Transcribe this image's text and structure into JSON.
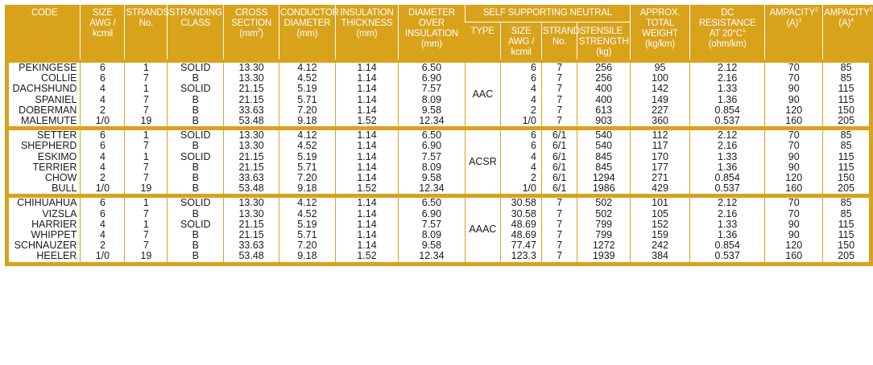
{
  "headers": {
    "code": "CODE",
    "size": [
      "SIZE",
      "AWG /",
      "kcmil"
    ],
    "strands": [
      "STRANDS",
      "No."
    ],
    "stranding": [
      "STRANDING",
      "CLASS"
    ],
    "cross": [
      "CROSS",
      "SECTION",
      "(mm",
      "2",
      ")"
    ],
    "conductor": [
      "CONDUCTOR",
      "DIAMETER",
      "(mm)"
    ],
    "insulation": [
      "INSULATION",
      "THICKNESS",
      "(mm)"
    ],
    "diameter": [
      "DIAMETER",
      "OVER",
      "INSULATION",
      "(mm)"
    ],
    "neutral_group": "SELF SUPPORTING NEUTRAL",
    "n_type": "TYPE",
    "n_size": [
      "SIZE",
      "AWG /",
      "kcmil"
    ],
    "n_strands": [
      "STRANDS",
      "No."
    ],
    "n_tensile": [
      "TENSILE",
      "STRENGTH",
      "(kg)"
    ],
    "weight": [
      "APPROX.",
      "TOTAL",
      "WEIGHT",
      "(kg/km)"
    ],
    "dc": [
      "DC",
      "RESISTANCE",
      "AT 20°C",
      "1",
      "(ohm/km)"
    ],
    "amp1": [
      "AMPACITY",
      "2",
      "(A)",
      "3"
    ],
    "amp2": [
      "AMPACITY",
      "2",
      "(A)",
      "4"
    ]
  },
  "groups": [
    {
      "type": "AAC",
      "rows": [
        {
          "code": "PEKINGESE",
          "size": "6",
          "strands": "1",
          "class": "SOLID",
          "cross": "13.30",
          "cond": "4.12",
          "ins": "1.14",
          "dia": "6.50",
          "nsize": "6",
          "nstr": "7",
          "tens": "256",
          "wt": "95",
          "dc": "2.12",
          "a1": "70",
          "a2": "85"
        },
        {
          "code": "COLLIE",
          "size": "6",
          "strands": "7",
          "class": "B",
          "cross": "13.30",
          "cond": "4.52",
          "ins": "1.14",
          "dia": "6.90",
          "nsize": "6",
          "nstr": "7",
          "tens": "256",
          "wt": "100",
          "dc": "2.16",
          "a1": "70",
          "a2": "85"
        },
        {
          "code": "DACHSHUND",
          "size": "4",
          "strands": "1",
          "class": "SOLID",
          "cross": "21.15",
          "cond": "5.19",
          "ins": "1.14",
          "dia": "7.57",
          "nsize": "4",
          "nstr": "7",
          "tens": "400",
          "wt": "142",
          "dc": "1.33",
          "a1": "90",
          "a2": "115"
        },
        {
          "code": "SPANIEL",
          "size": "4",
          "strands": "7",
          "class": "B",
          "cross": "21.15",
          "cond": "5.71",
          "ins": "1.14",
          "dia": "8.09",
          "nsize": "4",
          "nstr": "7",
          "tens": "400",
          "wt": "149",
          "dc": "1.36",
          "a1": "90",
          "a2": "115"
        },
        {
          "code": "DOBERMAN",
          "size": "2",
          "strands": "7",
          "class": "B",
          "cross": "33.63",
          "cond": "7.20",
          "ins": "1.14",
          "dia": "9.58",
          "nsize": "2",
          "nstr": "7",
          "tens": "613",
          "wt": "227",
          "dc": "0.854",
          "a1": "120",
          "a2": "150"
        },
        {
          "code": "MALEMUTE",
          "size": "1/0",
          "strands": "19",
          "class": "B",
          "cross": "53.48",
          "cond": "9.18",
          "ins": "1.52",
          "dia": "12.34",
          "nsize": "1/0",
          "nstr": "7",
          "tens": "903",
          "wt": "360",
          "dc": "0.537",
          "a1": "160",
          "a2": "205"
        }
      ]
    },
    {
      "type": "ACSR",
      "rows": [
        {
          "code": "SETTER",
          "size": "6",
          "strands": "1",
          "class": "SOLID",
          "cross": "13.30",
          "cond": "4.12",
          "ins": "1.14",
          "dia": "6.50",
          "nsize": "6",
          "nstr": "6/1",
          "tens": "540",
          "wt": "112",
          "dc": "2.12",
          "a1": "70",
          "a2": "85"
        },
        {
          "code": "SHEPHERD",
          "size": "6",
          "strands": "7",
          "class": "B",
          "cross": "13.30",
          "cond": "4.52",
          "ins": "1.14",
          "dia": "6.90",
          "nsize": "6",
          "nstr": "6/1",
          "tens": "540",
          "wt": "117",
          "dc": "2.16",
          "a1": "70",
          "a2": "85"
        },
        {
          "code": "ESKIMO",
          "size": "4",
          "strands": "1",
          "class": "SOLID",
          "cross": "21.15",
          "cond": "5.19",
          "ins": "1.14",
          "dia": "7.57",
          "nsize": "4",
          "nstr": "6/1",
          "tens": "845",
          "wt": "170",
          "dc": "1.33",
          "a1": "90",
          "a2": "115"
        },
        {
          "code": "TERRIER",
          "size": "4",
          "strands": "7",
          "class": "B",
          "cross": "21.15",
          "cond": "5.71",
          "ins": "1.14",
          "dia": "8.09",
          "nsize": "4",
          "nstr": "6/1",
          "tens": "845",
          "wt": "177",
          "dc": "1.36",
          "a1": "90",
          "a2": "115"
        },
        {
          "code": "CHOW",
          "size": "2",
          "strands": "7",
          "class": "B",
          "cross": "33.63",
          "cond": "7.20",
          "ins": "1.14",
          "dia": "9.58",
          "nsize": "2",
          "nstr": "6/1",
          "tens": "1294",
          "wt": "271",
          "dc": "0.854",
          "a1": "120",
          "a2": "150"
        },
        {
          "code": "BULL",
          "size": "1/0",
          "strands": "19",
          "class": "B",
          "cross": "53.48",
          "cond": "9.18",
          "ins": "1.52",
          "dia": "12.34",
          "nsize": "1/0",
          "nstr": "6/1",
          "tens": "1986",
          "wt": "429",
          "dc": "0.537",
          "a1": "160",
          "a2": "205"
        }
      ]
    },
    {
      "type": "AAAC",
      "rows": [
        {
          "code": "CHIHUAHUA",
          "size": "6",
          "strands": "1",
          "class": "SOLID",
          "cross": "13.30",
          "cond": "4.12",
          "ins": "1.14",
          "dia": "6.50",
          "nsize": "30.58",
          "nstr": "7",
          "tens": "502",
          "wt": "101",
          "dc": "2.12",
          "a1": "70",
          "a2": "85"
        },
        {
          "code": "VIZSLA",
          "size": "6",
          "strands": "7",
          "class": "B",
          "cross": "13.30",
          "cond": "4.52",
          "ins": "1.14",
          "dia": "6.90",
          "nsize": "30.58",
          "nstr": "7",
          "tens": "502",
          "wt": "105",
          "dc": "2.16",
          "a1": "70",
          "a2": "85"
        },
        {
          "code": "HARRIER",
          "size": "4",
          "strands": "1",
          "class": "SOLID",
          "cross": "21.15",
          "cond": "5.19",
          "ins": "1.14",
          "dia": "7.57",
          "nsize": "48.69",
          "nstr": "7",
          "tens": "799",
          "wt": "152",
          "dc": "1.33",
          "a1": "90",
          "a2": "115"
        },
        {
          "code": "WHIPPET",
          "size": "4",
          "strands": "7",
          "class": "B",
          "cross": "21.15",
          "cond": "5.71",
          "ins": "1.14",
          "dia": "8.09",
          "nsize": "48.69",
          "nstr": "7",
          "tens": "799",
          "wt": "159",
          "dc": "1.36",
          "a1": "90",
          "a2": "115"
        },
        {
          "code": "SCHNAUZER",
          "size": "2",
          "strands": "7",
          "class": "B",
          "cross": "33.63",
          "cond": "7.20",
          "ins": "1.14",
          "dia": "9.58",
          "nsize": "77.47",
          "nstr": "7",
          "tens": "1272",
          "wt": "242",
          "dc": "0.854",
          "a1": "120",
          "a2": "150"
        },
        {
          "code": "HEELER",
          "size": "1/0",
          "strands": "19",
          "class": "B",
          "cross": "53.48",
          "cond": "9.18",
          "ins": "1.52",
          "dia": "12.34",
          "nsize": "123.3",
          "nstr": "7",
          "tens": "1939",
          "wt": "384",
          "dc": "0.537",
          "a1": "160",
          "a2": "205"
        }
      ]
    }
  ],
  "colors": {
    "accent": "#d9a21b",
    "text": "#1a1a1a",
    "header_text": "#ffffff"
  }
}
